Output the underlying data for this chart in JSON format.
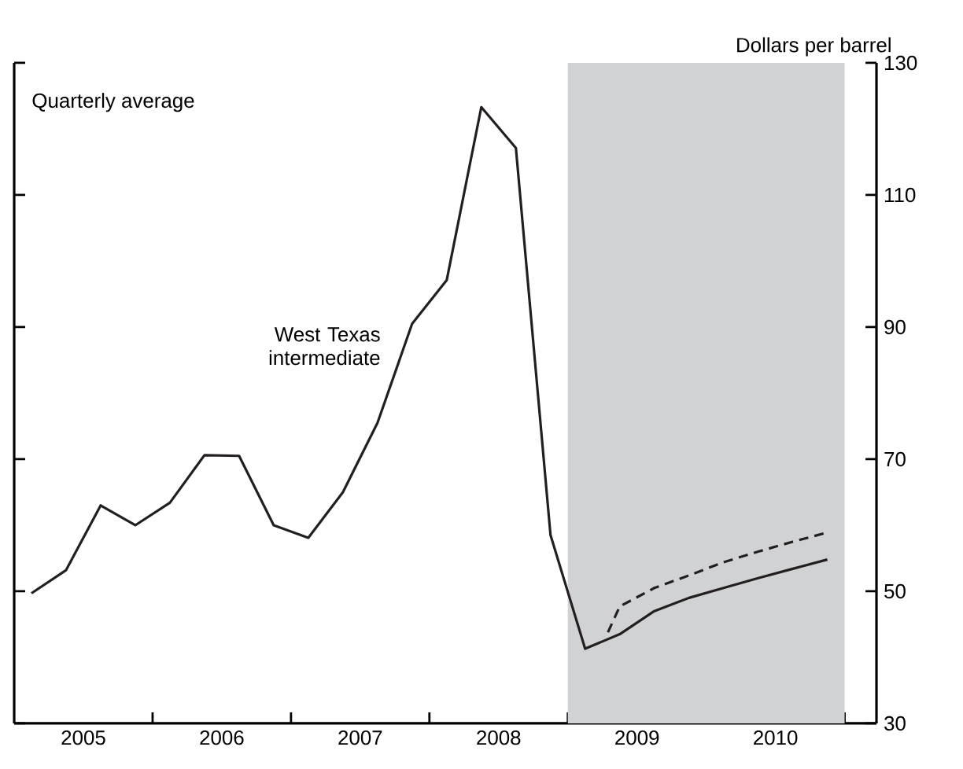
{
  "chart_data": {
    "type": "line",
    "ylabel": "Dollars per barrel",
    "annotations": [
      "Quarterly average",
      "West Texas intermediate"
    ],
    "series": [
      {
        "color": "#231f20",
        "line_style": "solid",
        "x": [
          2005.125,
          2005.375,
          2005.625,
          2005.875,
          2006.125,
          2006.375,
          2006.625,
          2006.875,
          2007.125,
          2007.375,
          2007.625,
          2007.875,
          2008.125,
          2008.375,
          2008.625,
          2008.875,
          2009.125,
          2009.375,
          2009.625,
          2009.875,
          2010.125,
          2010.375,
          2010.625,
          2010.875
        ],
        "values": [
          49.7,
          53.2,
          63.0,
          60.0,
          63.4,
          70.6,
          70.5,
          60.0,
          58.1,
          65.0,
          75.5,
          90.5,
          97.1,
          123.3,
          117.1,
          58.5,
          41.3,
          43.5,
          47.0,
          49.0,
          50.5,
          52.0,
          53.4,
          54.8
        ]
      },
      {
        "color": "#231f20",
        "line_style": "dashed",
        "x": [
          2009.29,
          2009.375,
          2009.625,
          2009.875,
          2010.125,
          2010.375,
          2010.625,
          2010.875
        ],
        "values": [
          43.8,
          47.7,
          50.5,
          52.4,
          54.4,
          56.0,
          57.5,
          58.9
        ]
      }
    ],
    "bands": [
      {
        "axis": "x",
        "from": 2009,
        "to": 2011,
        "color": "#d1d2d4"
      }
    ],
    "xlim": [
      2005,
      2011.23
    ],
    "xticks": [
      {
        "value": 2005.5,
        "label": "2005"
      },
      {
        "value": 2006,
        "label": null
      },
      {
        "value": 2006.5,
        "label": "2006"
      },
      {
        "value": 2007,
        "label": null
      },
      {
        "value": 2007.5,
        "label": "2007"
      },
      {
        "value": 2008,
        "label": null
      },
      {
        "value": 2008.5,
        "label": "2008"
      },
      {
        "value": 2009,
        "label": null
      },
      {
        "value": 2009.5,
        "label": "2009"
      },
      {
        "value": 2010,
        "label": null
      },
      {
        "value": 2010.5,
        "label": "2010"
      },
      {
        "value": 2011,
        "label": null
      }
    ],
    "ylim": [
      30,
      130
    ],
    "yticks": [
      30,
      50,
      70,
      90,
      110,
      130
    ],
    "grid": false,
    "marker": "none",
    "tick_labels": "xy"
  }
}
